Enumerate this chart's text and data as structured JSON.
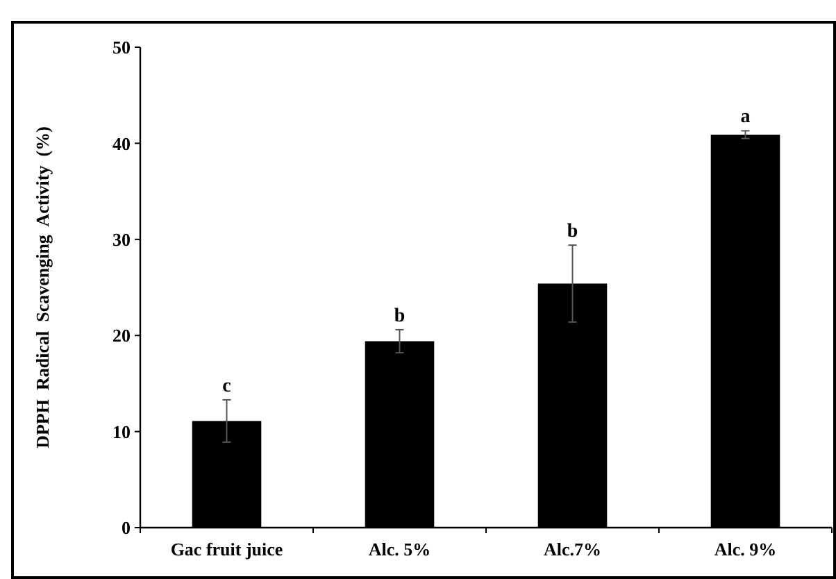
{
  "chart_data": {
    "type": "bar",
    "ylabel": "DPPH  Radical  Scavenging  Activity  (%)",
    "categories": [
      "Gac fruit juice",
      "Alc. 5%",
      "Alc.7%",
      "Alc. 9%"
    ],
    "values": [
      11.1,
      19.4,
      25.4,
      40.9
    ],
    "errors": [
      2.2,
      1.2,
      4,
      0.4
    ],
    "color": "#000000",
    "ylim": [
      0,
      50
    ],
    "yticks": [
      0,
      10,
      20,
      30,
      40,
      50
    ],
    "annotations": [
      {
        "text": "c",
        "x": "Gac fruit juice",
        "y": 13.3
      },
      {
        "text": "b",
        "x": "Alc. 5%",
        "y": 20.6
      },
      {
        "text": "b",
        "x": "Alc.7%",
        "y": 29.4
      },
      {
        "text": "a",
        "x": "Alc. 9%",
        "y": 41.3
      }
    ]
  }
}
